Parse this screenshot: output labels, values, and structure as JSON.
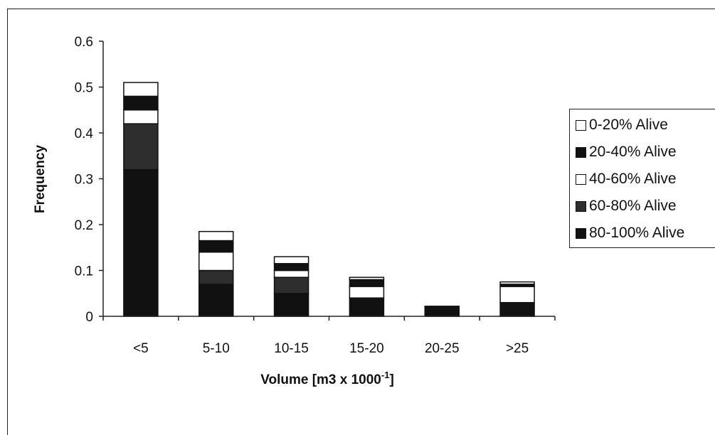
{
  "chart_data": {
    "type": "bar",
    "stacked": true,
    "categories": [
      "<5",
      "5-10",
      "10-15",
      "15-20",
      "20-25",
      ">25"
    ],
    "series": [
      {
        "name": "80-100% Alive",
        "color": "#111111",
        "values": [
          0.32,
          0.07,
          0.05,
          0.04,
          0.012,
          0.03
        ]
      },
      {
        "name": "60-80% Alive",
        "color": "#2e2e2e",
        "values": [
          0.1,
          0.03,
          0.035,
          0.0,
          0.0,
          0.0
        ]
      },
      {
        "name": "40-60% Alive",
        "color": "#ffffff",
        "values": [
          0.03,
          0.04,
          0.015,
          0.025,
          0.0,
          0.035
        ]
      },
      {
        "name": "20-40% Alive",
        "color": "#111111",
        "values": [
          0.03,
          0.025,
          0.015,
          0.015,
          0.01,
          0.005
        ]
      },
      {
        "name": "0-20% Alive",
        "color": "#ffffff",
        "values": [
          0.03,
          0.02,
          0.015,
          0.005,
          0.0,
          0.005
        ]
      }
    ],
    "xlabel_main": "Volume [m3 x 1000",
    "xlabel_sup": "-1",
    "xlabel_end": "]",
    "ylabel": "Frequency",
    "ylim": [
      0,
      0.6
    ],
    "yticks": [
      "0",
      "0.1",
      "0.2",
      "0.3",
      "0.4",
      "0.5",
      "0.6"
    ],
    "grid": false,
    "legend_position": "right",
    "legend_order": [
      "0-20% Alive",
      "20-40% Alive",
      "40-60% Alive",
      "60-80% Alive",
      "80-100% Alive"
    ]
  }
}
